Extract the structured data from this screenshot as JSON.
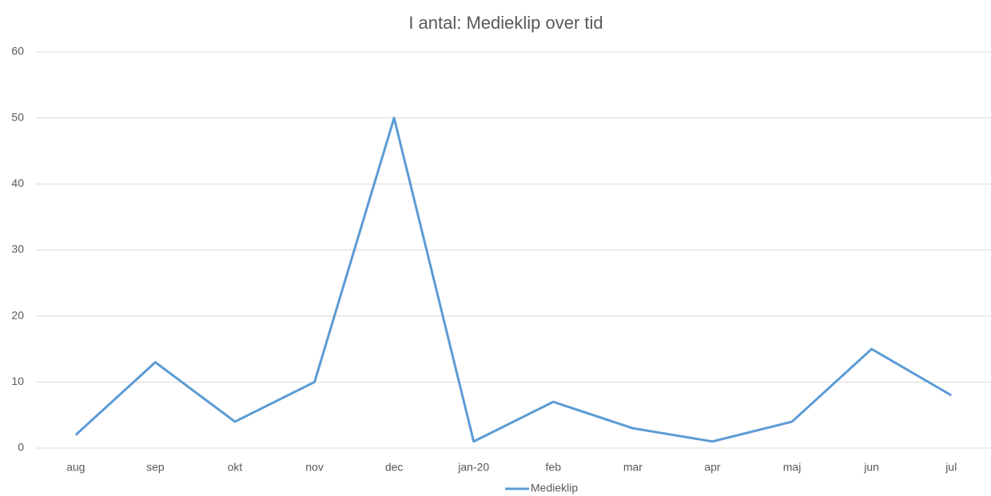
{
  "chart_data": {
    "type": "line",
    "title": "I antal: Medieklip over tid",
    "categories": [
      "aug",
      "sep",
      "okt",
      "nov",
      "dec",
      "jan-20",
      "feb",
      "mar",
      "apr",
      "maj",
      "jun",
      "jul"
    ],
    "series": [
      {
        "name": "Medieklip",
        "color": "#5b9bd5",
        "values": [
          2,
          13,
          4,
          10,
          50,
          1,
          7,
          3,
          1,
          4,
          15,
          8
        ]
      }
    ],
    "ylim": [
      0,
      60
    ],
    "yticks": [
      0,
      10,
      20,
      30,
      40,
      50,
      60
    ],
    "grid": true,
    "legend": "bottom"
  }
}
